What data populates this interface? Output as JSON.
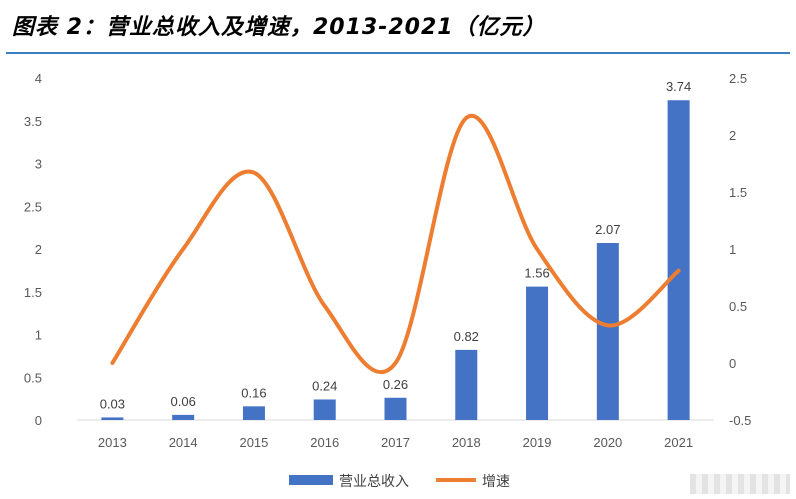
{
  "title": "图表 2：营业总收入及增速，2013-2021（亿元）",
  "colors": {
    "bar": "#4472c4",
    "line": "#ed7d31",
    "rule": "#3a7fc1"
  },
  "chart_data": {
    "type": "bar",
    "categories": [
      "2013",
      "2014",
      "2015",
      "2016",
      "2017",
      "2018",
      "2019",
      "2020",
      "2021"
    ],
    "series": [
      {
        "name": "营业总收入",
        "type": "bar",
        "axis": "left",
        "values": [
          0.03,
          0.06,
          0.16,
          0.24,
          0.26,
          0.82,
          1.56,
          2.07,
          3.74
        ],
        "labels": [
          "0.03",
          "0.06",
          "0.16",
          "0.24",
          "0.26",
          "0.82",
          "1.56",
          "2.07",
          "3.74"
        ]
      },
      {
        "name": "增速",
        "type": "line",
        "axis": "right",
        "smooth": true,
        "values": [
          0.0,
          1.0,
          1.67,
          0.5,
          0.0,
          2.15,
          1.0,
          0.33,
          0.81
        ]
      }
    ],
    "y_left": {
      "min": 0,
      "max": 4,
      "ticks": [
        "0",
        "0.5",
        "1",
        "1.5",
        "2",
        "2.5",
        "3",
        "3.5",
        "4"
      ]
    },
    "y_right": {
      "min": -0.5,
      "max": 2.5,
      "ticks": [
        "-0.5",
        "0",
        "0.5",
        "1",
        "1.5",
        "2",
        "2.5"
      ]
    },
    "legend": [
      "营业总收入",
      "增速"
    ],
    "legend_position": "bottom"
  }
}
